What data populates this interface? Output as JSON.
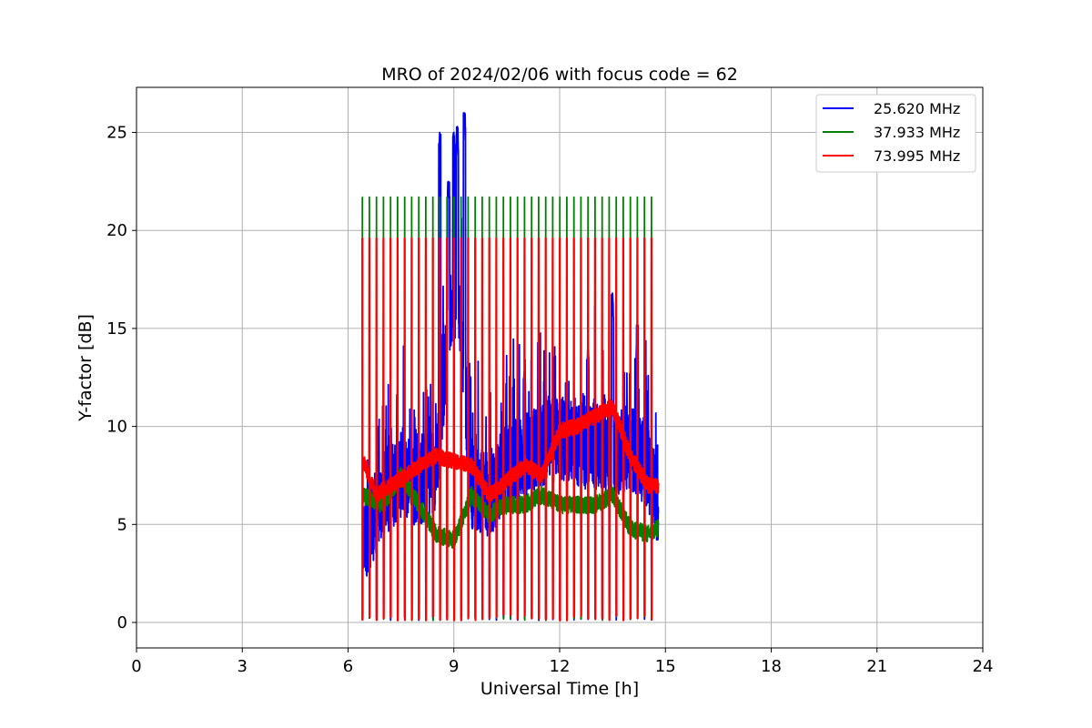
{
  "chart_data": {
    "type": "line",
    "title": "MRO of 2024/02/06 with focus code = 62",
    "xlabel": "Universal Time [h]",
    "ylabel": "Y-factor [dB]",
    "xlim": [
      0,
      24
    ],
    "ylim": [
      -1.3,
      27.3
    ],
    "xticks": [
      0,
      3,
      6,
      9,
      12,
      15,
      18,
      21,
      24
    ],
    "yticks": [
      0,
      5,
      10,
      15,
      20,
      25
    ],
    "grid": true,
    "legend_position": "top-right",
    "data_range_x": [
      6.4,
      14.8
    ],
    "pulse_period_h": 0.2,
    "series": [
      {
        "name": "25.620 MHz",
        "color": "#0000ff",
        "min_level": 0.1,
        "peaks": [
          [
            8.6,
            25.0
          ],
          [
            8.85,
            22.5
          ],
          [
            9.0,
            25.0
          ],
          [
            9.1,
            25.3
          ],
          [
            9.3,
            26.0
          ],
          [
            11.0,
            12.8
          ],
          [
            12.8,
            14.0
          ],
          [
            13.5,
            16.8
          ],
          [
            14.2,
            15.2
          ]
        ],
        "baseline": [
          [
            6.4,
            4.0
          ],
          [
            7.0,
            6.5
          ],
          [
            7.5,
            7.5
          ],
          [
            8.0,
            7.0
          ],
          [
            8.5,
            8.0
          ],
          [
            8.8,
            14.0
          ],
          [
            9.0,
            17.0
          ],
          [
            9.2,
            15.0
          ],
          [
            9.5,
            7.0
          ],
          [
            10.0,
            6.5
          ],
          [
            10.5,
            8.0
          ],
          [
            11.0,
            8.5
          ],
          [
            11.5,
            9.0
          ],
          [
            12.0,
            9.5
          ],
          [
            12.5,
            9.0
          ],
          [
            13.0,
            9.0
          ],
          [
            13.5,
            8.5
          ],
          [
            14.0,
            9.0
          ],
          [
            14.5,
            8.0
          ],
          [
            14.8,
            6.0
          ]
        ]
      },
      {
        "name": "37.933 MHz",
        "color": "#008000",
        "min_level": 0.1,
        "cal_level": 21.7,
        "baseline": [
          [
            6.4,
            6.5
          ],
          [
            7.0,
            6.0
          ],
          [
            7.5,
            7.5
          ],
          [
            8.0,
            6.0
          ],
          [
            8.5,
            4.5
          ],
          [
            9.0,
            4.2
          ],
          [
            9.5,
            6.5
          ],
          [
            10.0,
            5.5
          ],
          [
            10.5,
            6.0
          ],
          [
            11.0,
            6.0
          ],
          [
            11.5,
            6.5
          ],
          [
            12.0,
            6.0
          ],
          [
            12.5,
            6.0
          ],
          [
            13.0,
            6.0
          ],
          [
            13.5,
            6.5
          ],
          [
            14.0,
            4.8
          ],
          [
            14.5,
            4.5
          ],
          [
            14.8,
            4.8
          ]
        ]
      },
      {
        "name": "73.995 MHz",
        "color": "#ff0000",
        "min_level": 0.1,
        "cal_level": 19.6,
        "baseline": [
          [
            6.4,
            8.4
          ],
          [
            6.8,
            6.5
          ],
          [
            7.0,
            6.8
          ],
          [
            7.5,
            7.3
          ],
          [
            8.0,
            8.0
          ],
          [
            8.5,
            8.5
          ],
          [
            9.0,
            8.2
          ],
          [
            9.5,
            8.0
          ],
          [
            10.0,
            6.5
          ],
          [
            10.5,
            7.2
          ],
          [
            11.0,
            8.0
          ],
          [
            11.5,
            7.5
          ],
          [
            12.0,
            9.8
          ],
          [
            12.5,
            10.0
          ],
          [
            13.0,
            10.5
          ],
          [
            13.5,
            11.0
          ],
          [
            14.0,
            8.5
          ],
          [
            14.5,
            7.0
          ],
          [
            14.8,
            7.0
          ]
        ]
      }
    ]
  }
}
